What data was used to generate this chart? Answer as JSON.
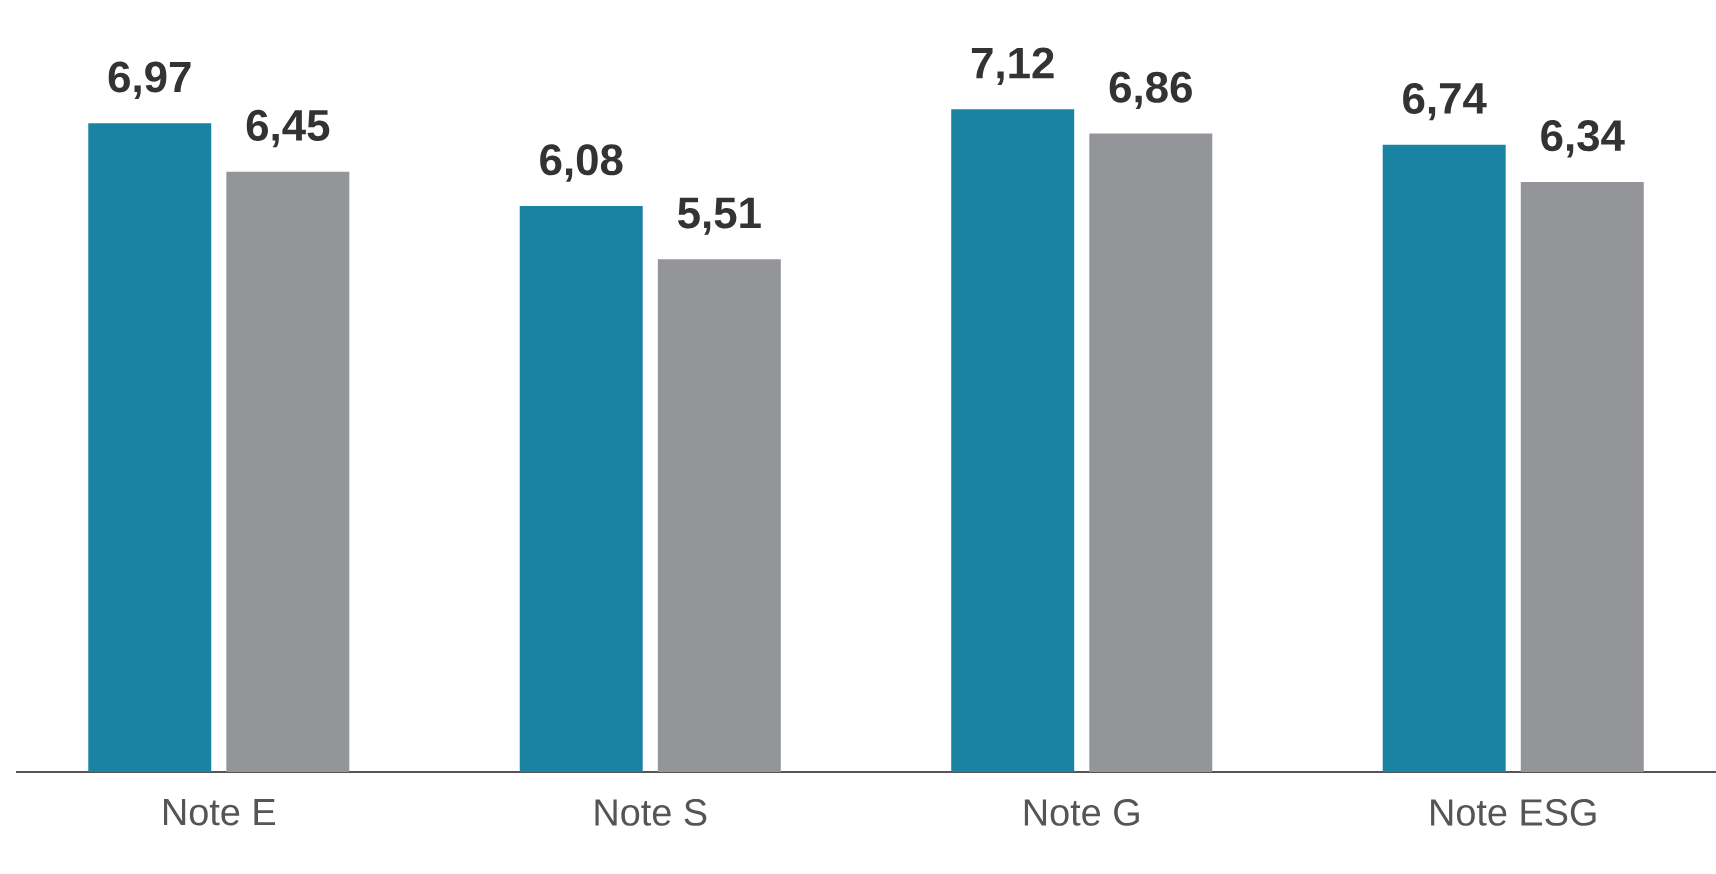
{
  "chart_data": {
    "type": "bar",
    "categories": [
      "Note E",
      "Note S",
      "Note G",
      "Note ESG"
    ],
    "series": [
      {
        "color": "#1a82a3",
        "values": [
          6.97,
          6.08,
          7.12,
          6.74
        ],
        "value_labels": [
          "6,97",
          "6,08",
          "7,12",
          "6,74"
        ]
      },
      {
        "color": "#939598",
        "values": [
          6.45,
          5.51,
          6.86,
          6.34
        ],
        "value_labels": [
          "6,45",
          "5,51",
          "6,86",
          "6,34"
        ]
      }
    ],
    "tick_labels": "x"
  }
}
